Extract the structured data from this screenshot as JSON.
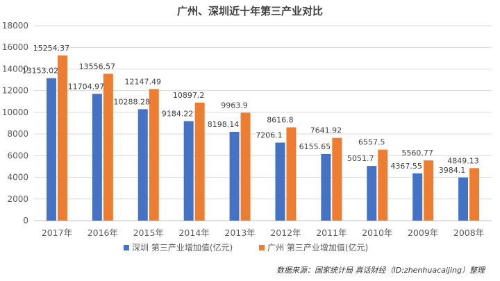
{
  "chart_data": {
    "type": "bar",
    "title": "广州、深圳近十年第三产业对比",
    "categories": [
      "2017年",
      "2016年",
      "2015年",
      "2014年",
      "2013年",
      "2012年",
      "2011年",
      "2010年",
      "2009年",
      "2008年"
    ],
    "series": [
      {
        "name": "深圳 第三产业增加值(亿元)",
        "color": "#4472C4",
        "values": [
          13153.02,
          11704.97,
          10288.28,
          9184.22,
          8198.14,
          7206.1,
          6155.65,
          5051.7,
          4367.55,
          3984.1
        ],
        "labels": [
          "13153.02",
          "11704.97",
          "10288.28",
          "9184.22",
          "8198.14",
          "7206.1",
          "6155.65",
          "5051.7",
          "4367.55",
          "3984.1"
        ]
      },
      {
        "name": "广州 第三产业增加值(亿元)",
        "color": "#ED7D31",
        "values": [
          15254.37,
          13556.57,
          12147.49,
          10897.2,
          9963.9,
          8616.8,
          7641.92,
          6557.5,
          5560.77,
          4849.13
        ],
        "labels": [
          "15254.37",
          "13556.57",
          "12147.49",
          "10897.2",
          "9963.9",
          "8616.8",
          "7641.92",
          "6557.5",
          "5560.77",
          "4849.13"
        ]
      }
    ],
    "ylim": [
      0,
      18000
    ],
    "yticks": [
      0,
      2000,
      4000,
      6000,
      8000,
      10000,
      12000,
      14000,
      16000,
      18000
    ],
    "grid": true,
    "legend_position": "bottom",
    "source_note": "数据来源：国家统计局 真话财经（ID:zhenhuacaijing）整理"
  }
}
